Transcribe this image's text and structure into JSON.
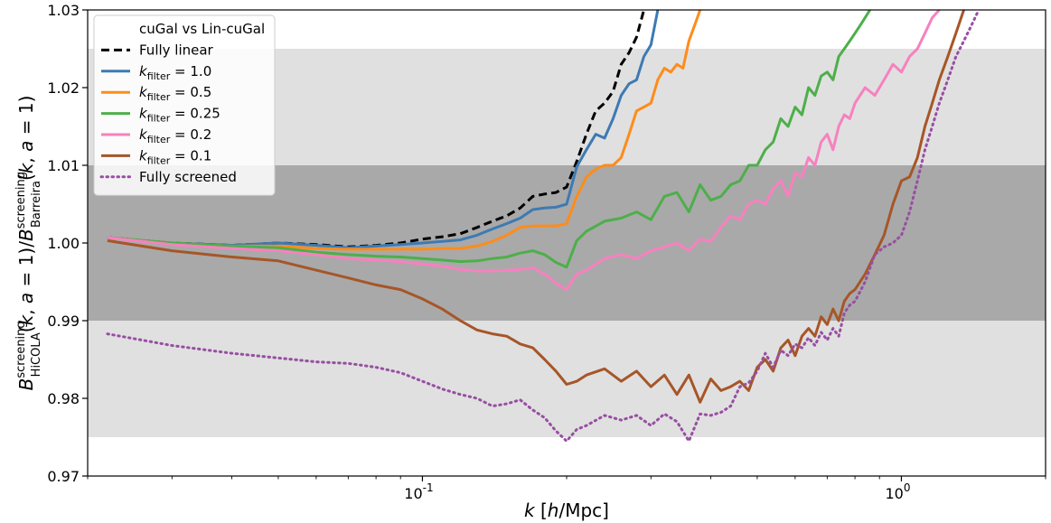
{
  "chart_data": {
    "type": "line",
    "x_scale": "log",
    "xlim": [
      0.02,
      2.0
    ],
    "ylim": [
      0.97,
      1.03
    ],
    "xlabel": "k [h/Mpc]",
    "ylabel": "B^screening_HiCOLA(k, a=1)/B^screening_Barreira(k, a=1)",
    "y_ticks": [
      "0.97",
      "0.98",
      "0.99",
      "1.00",
      "1.01",
      "1.02",
      "1.03"
    ],
    "x_ticks": [
      "10^-1",
      "10^0"
    ],
    "x_tick_values": [
      0.1,
      1.0
    ],
    "y_tick_values": [
      0.97,
      0.98,
      0.99,
      1.0,
      1.01,
      1.02,
      1.03
    ],
    "bands": [
      {
        "y0": 0.975,
        "y1": 1.025,
        "color": "#e0e0e0"
      },
      {
        "y0": 0.99,
        "y1": 1.01,
        "color": "#a9a9a9"
      }
    ],
    "legend": {
      "title": "cuGal vs Lin-cuGal",
      "placement": "upper-left"
    },
    "series": [
      {
        "name": "Fully linear",
        "label_main": "Fully linear",
        "label_sub": "",
        "label_eq": "",
        "color": "#000000",
        "dash": "9,5",
        "width": 3,
        "x": [
          0.022,
          0.03,
          0.04,
          0.05,
          0.06,
          0.07,
          0.08,
          0.09,
          0.1,
          0.11,
          0.12,
          0.13,
          0.14,
          0.15,
          0.16,
          0.17,
          0.18,
          0.19,
          0.2,
          0.21,
          0.22,
          0.23,
          0.24,
          0.25,
          0.26,
          0.27,
          0.28,
          0.29
        ],
        "y": [
          1.0007,
          1.0,
          0.9997,
          1.0,
          0.9998,
          0.9995,
          0.9997,
          1.0,
          1.0005,
          1.0008,
          1.0012,
          1.002,
          1.0028,
          1.0035,
          1.0045,
          1.006,
          1.0063,
          1.0065,
          1.0072,
          1.0105,
          1.014,
          1.017,
          1.018,
          1.0195,
          1.023,
          1.0245,
          1.0265,
          1.03
        ]
      },
      {
        "name": "k_filter = 1.0",
        "label_main": "k",
        "label_sub": "filter",
        "label_eq": " = 1.0",
        "color": "#3d7ab3",
        "dash": "",
        "width": 3,
        "x": [
          0.022,
          0.03,
          0.04,
          0.05,
          0.06,
          0.07,
          0.08,
          0.09,
          0.1,
          0.11,
          0.12,
          0.13,
          0.14,
          0.15,
          0.16,
          0.17,
          0.18,
          0.19,
          0.2,
          0.21,
          0.22,
          0.23,
          0.24,
          0.25,
          0.26,
          0.27,
          0.28,
          0.29,
          0.3,
          0.31
        ],
        "y": [
          1.0007,
          1.0,
          0.9997,
          1.0,
          0.9997,
          0.9994,
          0.9996,
          0.9998,
          1.0,
          1.0002,
          1.0004,
          1.001,
          1.0018,
          1.0025,
          1.0032,
          1.0043,
          1.0045,
          1.0046,
          1.005,
          1.0098,
          1.012,
          1.014,
          1.0135,
          1.016,
          1.019,
          1.0205,
          1.021,
          1.024,
          1.0255,
          1.03
        ]
      },
      {
        "name": "k_filter = 0.5",
        "label_main": "k",
        "label_sub": "filter",
        "label_eq": " = 0.5",
        "color": "#ff8c1a",
        "dash": "",
        "width": 3,
        "x": [
          0.022,
          0.03,
          0.04,
          0.05,
          0.06,
          0.07,
          0.08,
          0.09,
          0.1,
          0.11,
          0.12,
          0.13,
          0.14,
          0.15,
          0.16,
          0.17,
          0.18,
          0.19,
          0.2,
          0.21,
          0.22,
          0.23,
          0.24,
          0.25,
          0.26,
          0.27,
          0.28,
          0.29,
          0.3,
          0.31,
          0.32,
          0.33,
          0.34,
          0.35,
          0.36,
          0.37,
          0.38
        ],
        "y": [
          1.0007,
          1.0,
          0.9996,
          0.9996,
          0.9993,
          0.9992,
          0.9992,
          0.9992,
          0.9992,
          0.9993,
          0.9993,
          0.9996,
          1.0002,
          1.001,
          1.002,
          1.0022,
          1.0022,
          1.0022,
          1.0025,
          1.006,
          1.0085,
          1.0095,
          1.01,
          1.01,
          1.011,
          1.014,
          1.017,
          1.0175,
          1.018,
          1.021,
          1.0225,
          1.022,
          1.023,
          1.0225,
          1.026,
          1.028,
          1.03
        ]
      },
      {
        "name": "k_filter = 0.25",
        "label_main": "k",
        "label_sub": "filter",
        "label_eq": " = 0.25",
        "color": "#4daf4a",
        "dash": "",
        "width": 3,
        "x": [
          0.022,
          0.03,
          0.04,
          0.05,
          0.06,
          0.07,
          0.08,
          0.09,
          0.1,
          0.11,
          0.12,
          0.13,
          0.14,
          0.15,
          0.16,
          0.17,
          0.18,
          0.19,
          0.2,
          0.21,
          0.22,
          0.24,
          0.26,
          0.28,
          0.3,
          0.32,
          0.34,
          0.36,
          0.38,
          0.4,
          0.42,
          0.44,
          0.46,
          0.48,
          0.5,
          0.52,
          0.54,
          0.56,
          0.58,
          0.6,
          0.62,
          0.64,
          0.66,
          0.68,
          0.7,
          0.72,
          0.74,
          0.76,
          0.78,
          0.8,
          0.82,
          0.84,
          0.86
        ],
        "y": [
          1.0007,
          1.0,
          0.9996,
          0.9994,
          0.9988,
          0.9985,
          0.9983,
          0.9982,
          0.998,
          0.9978,
          0.9976,
          0.9977,
          0.998,
          0.9982,
          0.9987,
          0.999,
          0.9985,
          0.9975,
          0.9969,
          1.0003,
          1.0015,
          1.0028,
          1.0032,
          1.004,
          1.003,
          1.006,
          1.0065,
          1.004,
          1.0075,
          1.0055,
          1.006,
          1.0075,
          1.008,
          1.01,
          1.01,
          1.012,
          1.013,
          1.016,
          1.015,
          1.0175,
          1.0165,
          1.02,
          1.019,
          1.0215,
          1.022,
          1.021,
          1.024,
          1.025,
          1.026,
          1.027,
          1.028,
          1.029,
          1.03
        ]
      },
      {
        "name": "k_filter = 0.2",
        "label_main": "k",
        "label_sub": "filter",
        "label_eq": " = 0.2",
        "color": "#f781bf",
        "dash": "",
        "width": 3,
        "x": [
          0.022,
          0.03,
          0.04,
          0.05,
          0.06,
          0.07,
          0.08,
          0.09,
          0.1,
          0.11,
          0.12,
          0.13,
          0.14,
          0.15,
          0.16,
          0.17,
          0.18,
          0.19,
          0.2,
          0.21,
          0.22,
          0.24,
          0.26,
          0.28,
          0.3,
          0.32,
          0.34,
          0.36,
          0.38,
          0.4,
          0.42,
          0.44,
          0.46,
          0.48,
          0.5,
          0.52,
          0.54,
          0.56,
          0.58,
          0.6,
          0.62,
          0.64,
          0.66,
          0.68,
          0.7,
          0.72,
          0.74,
          0.76,
          0.78,
          0.8,
          0.84,
          0.88,
          0.92,
          0.96,
          1.0,
          1.04,
          1.08,
          1.12,
          1.16,
          1.2
        ],
        "y": [
          1.0007,
          0.9998,
          0.9993,
          0.999,
          0.9985,
          0.998,
          0.9978,
          0.9976,
          0.9973,
          0.997,
          0.9966,
          0.9964,
          0.9964,
          0.9965,
          0.9966,
          0.9968,
          0.996,
          0.9948,
          0.994,
          0.996,
          0.9965,
          0.998,
          0.9985,
          0.998,
          0.999,
          0.9995,
          1.0,
          0.999,
          1.0005,
          1.0002,
          1.002,
          1.0035,
          1.003,
          1.005,
          1.0055,
          1.005,
          1.007,
          1.008,
          1.006,
          1.009,
          1.0085,
          1.011,
          1.01,
          1.013,
          1.014,
          1.012,
          1.015,
          1.0165,
          1.016,
          1.018,
          1.02,
          1.019,
          1.021,
          1.023,
          1.022,
          1.024,
          1.025,
          1.027,
          1.029,
          1.03
        ]
      },
      {
        "name": "k_filter = 0.1",
        "label_main": "k",
        "label_sub": "filter",
        "label_eq": " = 0.1",
        "color": "#a65628",
        "dash": "",
        "width": 3,
        "x": [
          0.022,
          0.03,
          0.04,
          0.05,
          0.06,
          0.07,
          0.08,
          0.09,
          0.1,
          0.11,
          0.12,
          0.13,
          0.14,
          0.15,
          0.16,
          0.17,
          0.18,
          0.19,
          0.2,
          0.21,
          0.22,
          0.24,
          0.26,
          0.28,
          0.3,
          0.32,
          0.34,
          0.36,
          0.38,
          0.4,
          0.42,
          0.44,
          0.46,
          0.48,
          0.5,
          0.52,
          0.54,
          0.56,
          0.58,
          0.6,
          0.62,
          0.64,
          0.66,
          0.68,
          0.7,
          0.72,
          0.74,
          0.76,
          0.78,
          0.8,
          0.84,
          0.88,
          0.92,
          0.96,
          1.0,
          1.04,
          1.08,
          1.12,
          1.16,
          1.2,
          1.25,
          1.3,
          1.35
        ],
        "y": [
          1.0003,
          0.999,
          0.9982,
          0.9977,
          0.9965,
          0.9955,
          0.9946,
          0.994,
          0.9928,
          0.9915,
          0.99,
          0.9888,
          0.9883,
          0.988,
          0.987,
          0.9865,
          0.985,
          0.9835,
          0.9818,
          0.9822,
          0.983,
          0.9838,
          0.9822,
          0.9835,
          0.9815,
          0.983,
          0.9805,
          0.983,
          0.9795,
          0.9825,
          0.981,
          0.9815,
          0.9822,
          0.981,
          0.984,
          0.985,
          0.9835,
          0.9865,
          0.9875,
          0.9855,
          0.988,
          0.989,
          0.988,
          0.9905,
          0.9895,
          0.9915,
          0.99,
          0.9925,
          0.9935,
          0.994,
          0.996,
          0.9985,
          1.001,
          1.005,
          1.008,
          1.0085,
          1.011,
          1.015,
          1.018,
          1.021,
          1.024,
          1.027,
          1.03
        ]
      },
      {
        "name": "Fully screened",
        "label_main": "Fully screened",
        "label_sub": "",
        "label_eq": "",
        "color": "#984ea3",
        "dash": "1.5,4.5",
        "width": 3,
        "x": [
          0.022,
          0.03,
          0.04,
          0.05,
          0.06,
          0.07,
          0.08,
          0.09,
          0.1,
          0.11,
          0.12,
          0.13,
          0.14,
          0.15,
          0.16,
          0.17,
          0.18,
          0.19,
          0.2,
          0.21,
          0.22,
          0.24,
          0.26,
          0.28,
          0.3,
          0.32,
          0.34,
          0.36,
          0.38,
          0.4,
          0.42,
          0.44,
          0.46,
          0.48,
          0.5,
          0.52,
          0.54,
          0.56,
          0.58,
          0.6,
          0.62,
          0.64,
          0.66,
          0.68,
          0.7,
          0.72,
          0.74,
          0.76,
          0.78,
          0.8,
          0.84,
          0.88,
          0.92,
          0.96,
          1.0,
          1.04,
          1.08,
          1.12,
          1.16,
          1.2,
          1.25,
          1.3,
          1.35,
          1.4,
          1.45
        ],
        "y": [
          0.9883,
          0.9868,
          0.9858,
          0.9852,
          0.9847,
          0.9845,
          0.984,
          0.9833,
          0.9822,
          0.9812,
          0.9805,
          0.98,
          0.979,
          0.9793,
          0.9798,
          0.9785,
          0.9775,
          0.9758,
          0.9745,
          0.976,
          0.9765,
          0.9778,
          0.9772,
          0.9778,
          0.9765,
          0.978,
          0.977,
          0.9745,
          0.978,
          0.9778,
          0.9782,
          0.979,
          0.9815,
          0.982,
          0.9835,
          0.9858,
          0.984,
          0.9862,
          0.9855,
          0.987,
          0.9865,
          0.9878,
          0.9868,
          0.9885,
          0.9875,
          0.989,
          0.988,
          0.991,
          0.992,
          0.9925,
          0.995,
          0.9985,
          0.9995,
          1.0,
          1.001,
          1.004,
          1.008,
          1.012,
          1.015,
          1.018,
          1.021,
          1.024,
          1.026,
          1.028,
          1.03
        ]
      }
    ]
  }
}
